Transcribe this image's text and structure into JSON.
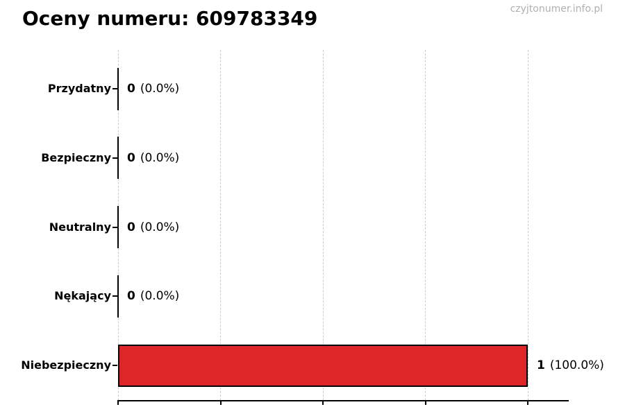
{
  "chart_data": {
    "type": "bar",
    "orientation": "horizontal",
    "title": "Oceny numeru: 609783349",
    "watermark": "czyjtonumer.info.pl",
    "categories": [
      "Przydatny",
      "Bezpieczny",
      "Neutralny",
      "Nękający",
      "Niebezpieczny"
    ],
    "values": [
      0,
      0,
      0,
      0,
      1
    ],
    "value_display": [
      "0",
      "0",
      "0",
      "0",
      "1"
    ],
    "percent_display": [
      "(0.0%)",
      "(0.0%)",
      "(0.0%)",
      "(0.0%)",
      "(100.0%)"
    ],
    "xlim": [
      0,
      1.1
    ],
    "x_ticks": [
      0,
      0.25,
      0.5,
      0.75,
      1
    ],
    "x_tick_labels": [],
    "ylabel": "",
    "xlabel": "",
    "legend": "none",
    "grid": {
      "axis": "x",
      "style": "dashed",
      "color": "#cccccc"
    },
    "colors": {
      "bar_fill": "#de2528",
      "bar_edge": "#000000",
      "zero_bar": "#000000",
      "axis": "#000000",
      "text": "#000000",
      "watermark_text": "#b0b0b0",
      "background": "#ffffff"
    }
  }
}
